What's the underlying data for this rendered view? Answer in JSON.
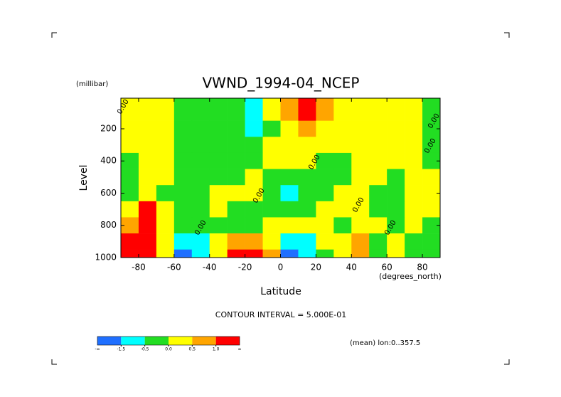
{
  "chart_data": {
    "type": "contour",
    "title": "VWND_1994-04_NCEP",
    "y_units": "(millibar)",
    "y_label": "Level",
    "x_label": "Latitude",
    "x_units": "(degrees_north)",
    "contour_interval": "CONTOUR INTERVAL = 5.000E-01",
    "note": "(mean) lon:0..357.5",
    "contour_labels": [
      "0.00",
      "0.00",
      "0.00",
      "0.00",
      "0.00",
      "0.00",
      "0.00",
      "0.00"
    ],
    "xlim": [
      -90,
      90
    ],
    "xticks": [
      -80,
      -60,
      -40,
      -20,
      0,
      20,
      40,
      60,
      80
    ],
    "ylim": [
      1000,
      10
    ],
    "yticks": [
      200,
      400,
      600,
      800,
      1000
    ],
    "x": [
      -85,
      -75,
      -65,
      -55,
      -45,
      -35,
      -25,
      -15,
      -5,
      5,
      15,
      25,
      35,
      45,
      55,
      65,
      75,
      85
    ],
    "y": [
      100,
      200,
      300,
      400,
      500,
      600,
      700,
      800,
      900,
      1000
    ],
    "z": [
      [
        0.2,
        0.2,
        0.2,
        -0.2,
        -0.2,
        -0.2,
        -0.3,
        -0.7,
        0.2,
        0.6,
        1.2,
        0.6,
        0.2,
        0.2,
        0.2,
        0.2,
        0.2,
        -0.2
      ],
      [
        0.2,
        0.2,
        0.2,
        -0.2,
        -0.2,
        -0.2,
        -0.2,
        -0.6,
        -0.2,
        0.3,
        0.7,
        0.3,
        0.2,
        0.2,
        0.2,
        0.2,
        0.2,
        -0.2
      ],
      [
        0.1,
        0.2,
        0.2,
        -0.2,
        -0.2,
        -0.2,
        -0.2,
        -0.2,
        0.2,
        0.2,
        0.2,
        0.2,
        0.1,
        0.2,
        0.2,
        0.2,
        0.2,
        -0.2
      ],
      [
        -0.1,
        0.2,
        0.2,
        -0.2,
        -0.2,
        -0.2,
        -0.2,
        -0.2,
        0.2,
        0.2,
        0.2,
        -0.2,
        -0.2,
        0.2,
        0.2,
        0.2,
        0.2,
        -0.2
      ],
      [
        -0.2,
        0.2,
        0.2,
        -0.2,
        -0.2,
        -0.2,
        -0.2,
        0.2,
        -0.2,
        -0.2,
        -0.2,
        -0.2,
        -0.2,
        0.2,
        0.2,
        -0.2,
        0.2,
        0.2
      ],
      [
        -0.2,
        0.3,
        -0.2,
        -0.2,
        -0.2,
        0.2,
        0.2,
        0.2,
        -0.2,
        -0.7,
        -0.2,
        -0.2,
        0.2,
        0.2,
        -0.2,
        -0.2,
        0.2,
        0.2
      ],
      [
        0.3,
        1.2,
        0.3,
        -0.2,
        -0.2,
        0.2,
        -0.2,
        -0.2,
        -0.2,
        -0.2,
        -0.2,
        0.2,
        0.2,
        0.2,
        -0.2,
        -0.2,
        0.2,
        0.2
      ],
      [
        0.8,
        1.5,
        0.2,
        -0.2,
        -0.2,
        -0.2,
        -0.2,
        -0.2,
        0.2,
        0.2,
        0.2,
        0.2,
        -0.2,
        0.2,
        0.2,
        -0.2,
        0.2,
        -0.2
      ],
      [
        1.3,
        1.6,
        0.2,
        -0.7,
        -0.7,
        0.2,
        0.6,
        0.7,
        0.3,
        -0.7,
        -0.7,
        0.2,
        0.2,
        0.7,
        -0.2,
        0.2,
        -0.2,
        -0.2
      ],
      [
        1.5,
        1.8,
        0.2,
        -1.6,
        -0.8,
        0.3,
        1.2,
        1.3,
        0.6,
        -1.6,
        -1.0,
        -0.2,
        0.2,
        0.7,
        -0.2,
        0.2,
        -0.2,
        -0.2
      ]
    ],
    "colorbar": {
      "colors": [
        "#1f6fff",
        "#00ffff",
        "#22dd22",
        "#ffff00",
        "#ffa500",
        "#ff0000"
      ],
      "levels": [
        -1.5,
        -0.5,
        {
          "value": 0,
          "label": "0.0"
        },
        0.5,
        {
          "value": 1,
          "label": "1.0"
        }
      ],
      "end_labels": [
        "-∞",
        "∞"
      ]
    }
  }
}
